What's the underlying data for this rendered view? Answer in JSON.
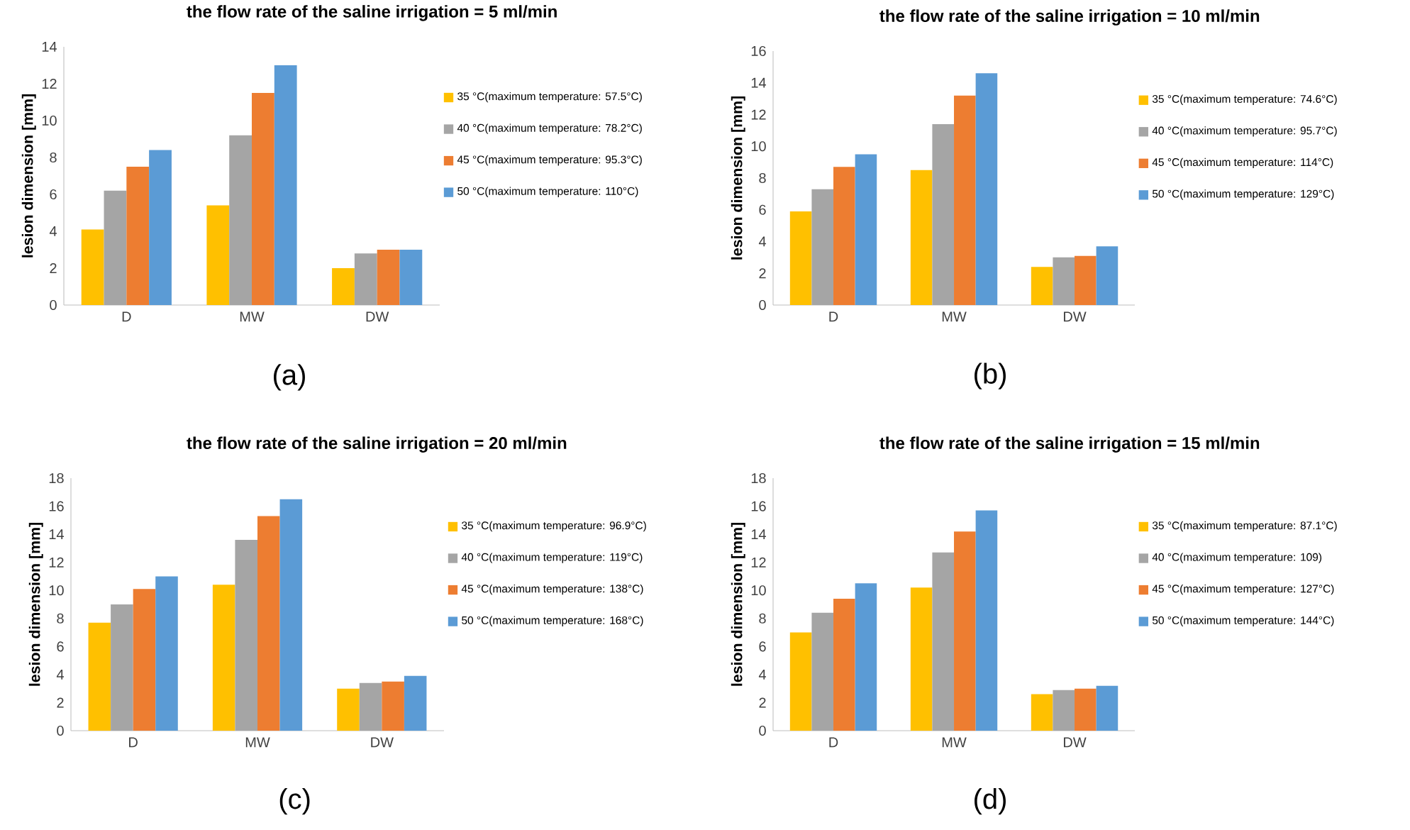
{
  "chart_data": [
    {
      "type": "bar",
      "title": "the flow rate of the saline irrigation = 5 ml/min",
      "ylabel": "lesion dimension [mm]",
      "categories": [
        "D",
        "MW",
        "DW"
      ],
      "ylim": [
        0,
        14
      ],
      "yticks": [
        0,
        2,
        4,
        6,
        8,
        10,
        12,
        14
      ],
      "legend": "right",
      "annotations": [
        "(a)"
      ],
      "series": [
        {
          "name": "35 °C(maximum temperature: 57.5°C)",
          "color": "#ffc000",
          "values": [
            4.1,
            5.4,
            2.0
          ]
        },
        {
          "name": "40 °C(maximum temperature: 78.2°C)",
          "color": "#a5a5a5",
          "values": [
            6.2,
            9.2,
            2.8
          ]
        },
        {
          "name": "45 °C(maximum temperature: 95.3°C)",
          "color": "#ed7d31",
          "values": [
            7.5,
            11.5,
            3.0
          ]
        },
        {
          "name": "50 °C(maximum temperature: 110°C)",
          "color": "#5b9bd5",
          "values": [
            8.4,
            13.0,
            3.0
          ]
        }
      ]
    },
    {
      "type": "bar",
      "title": "the flow rate of the saline irrigation = 10 ml/min",
      "ylabel": "lesion dimension [mm]",
      "categories": [
        "D",
        "MW",
        "DW"
      ],
      "ylim": [
        0,
        16
      ],
      "yticks": [
        0,
        2,
        4,
        6,
        8,
        10,
        12,
        14,
        16
      ],
      "legend": "right",
      "annotations": [
        "(b)"
      ],
      "series": [
        {
          "name": "35 °C(maximum temperature: 74.6°C)",
          "color": "#ffc000",
          "values": [
            5.9,
            8.5,
            2.4
          ]
        },
        {
          "name": "40 °C(maximum temperature: 95.7°C)",
          "color": "#a5a5a5",
          "values": [
            7.3,
            11.4,
            3.0
          ]
        },
        {
          "name": "45 °C(maximum temperature: 114°C)",
          "color": "#ed7d31",
          "values": [
            8.7,
            13.2,
            3.1
          ]
        },
        {
          "name": "50 °C(maximum temperature: 129°C)",
          "color": "#5b9bd5",
          "values": [
            9.5,
            14.6,
            3.7
          ]
        }
      ]
    },
    {
      "type": "bar",
      "title": "the flow rate of the saline irrigation = 20 ml/min",
      "ylabel": "lesion dimension [mm]",
      "categories": [
        "D",
        "MW",
        "DW"
      ],
      "ylim": [
        0,
        18
      ],
      "yticks": [
        0,
        2,
        4,
        6,
        8,
        10,
        12,
        14,
        16,
        18
      ],
      "legend": "right",
      "annotations": [
        "(c)"
      ],
      "series": [
        {
          "name": "35 °C(maximum temperature: 96.9°C)",
          "color": "#ffc000",
          "values": [
            7.7,
            10.4,
            3.0
          ]
        },
        {
          "name": "40 °C(maximum temperature: 119°C)",
          "color": "#a5a5a5",
          "values": [
            9.0,
            13.6,
            3.4
          ]
        },
        {
          "name": "45 °C(maximum temperature: 138°C)",
          "color": "#ed7d31",
          "values": [
            10.1,
            15.3,
            3.5
          ]
        },
        {
          "name": "50 °C(maximum temperature: 168°C)",
          "color": "#5b9bd5",
          "values": [
            11.0,
            16.5,
            3.9
          ]
        }
      ]
    },
    {
      "type": "bar",
      "title": "the flow rate of the saline irrigation = 15 ml/min",
      "ylabel": "lesion dimension [mm]",
      "categories": [
        "D",
        "MW",
        "DW"
      ],
      "ylim": [
        0,
        18
      ],
      "yticks": [
        0,
        2,
        4,
        6,
        8,
        10,
        12,
        14,
        16,
        18
      ],
      "legend": "right",
      "annotations": [
        "(d)"
      ],
      "series": [
        {
          "name": "35 °C(maximum temperature: 87.1°C)",
          "color": "#ffc000",
          "values": [
            7.0,
            10.2,
            2.6
          ]
        },
        {
          "name": "40 °C(maximum temperature: 109)",
          "color": "#a5a5a5",
          "values": [
            8.4,
            12.7,
            2.9
          ]
        },
        {
          "name": "45 °C(maximum temperature: 127°C)",
          "color": "#ed7d31",
          "values": [
            9.4,
            14.2,
            3.0
          ]
        },
        {
          "name": "50 °C(maximum temperature: 144°C)",
          "color": "#5b9bd5",
          "values": [
            10.5,
            15.7,
            3.2
          ]
        }
      ]
    }
  ]
}
